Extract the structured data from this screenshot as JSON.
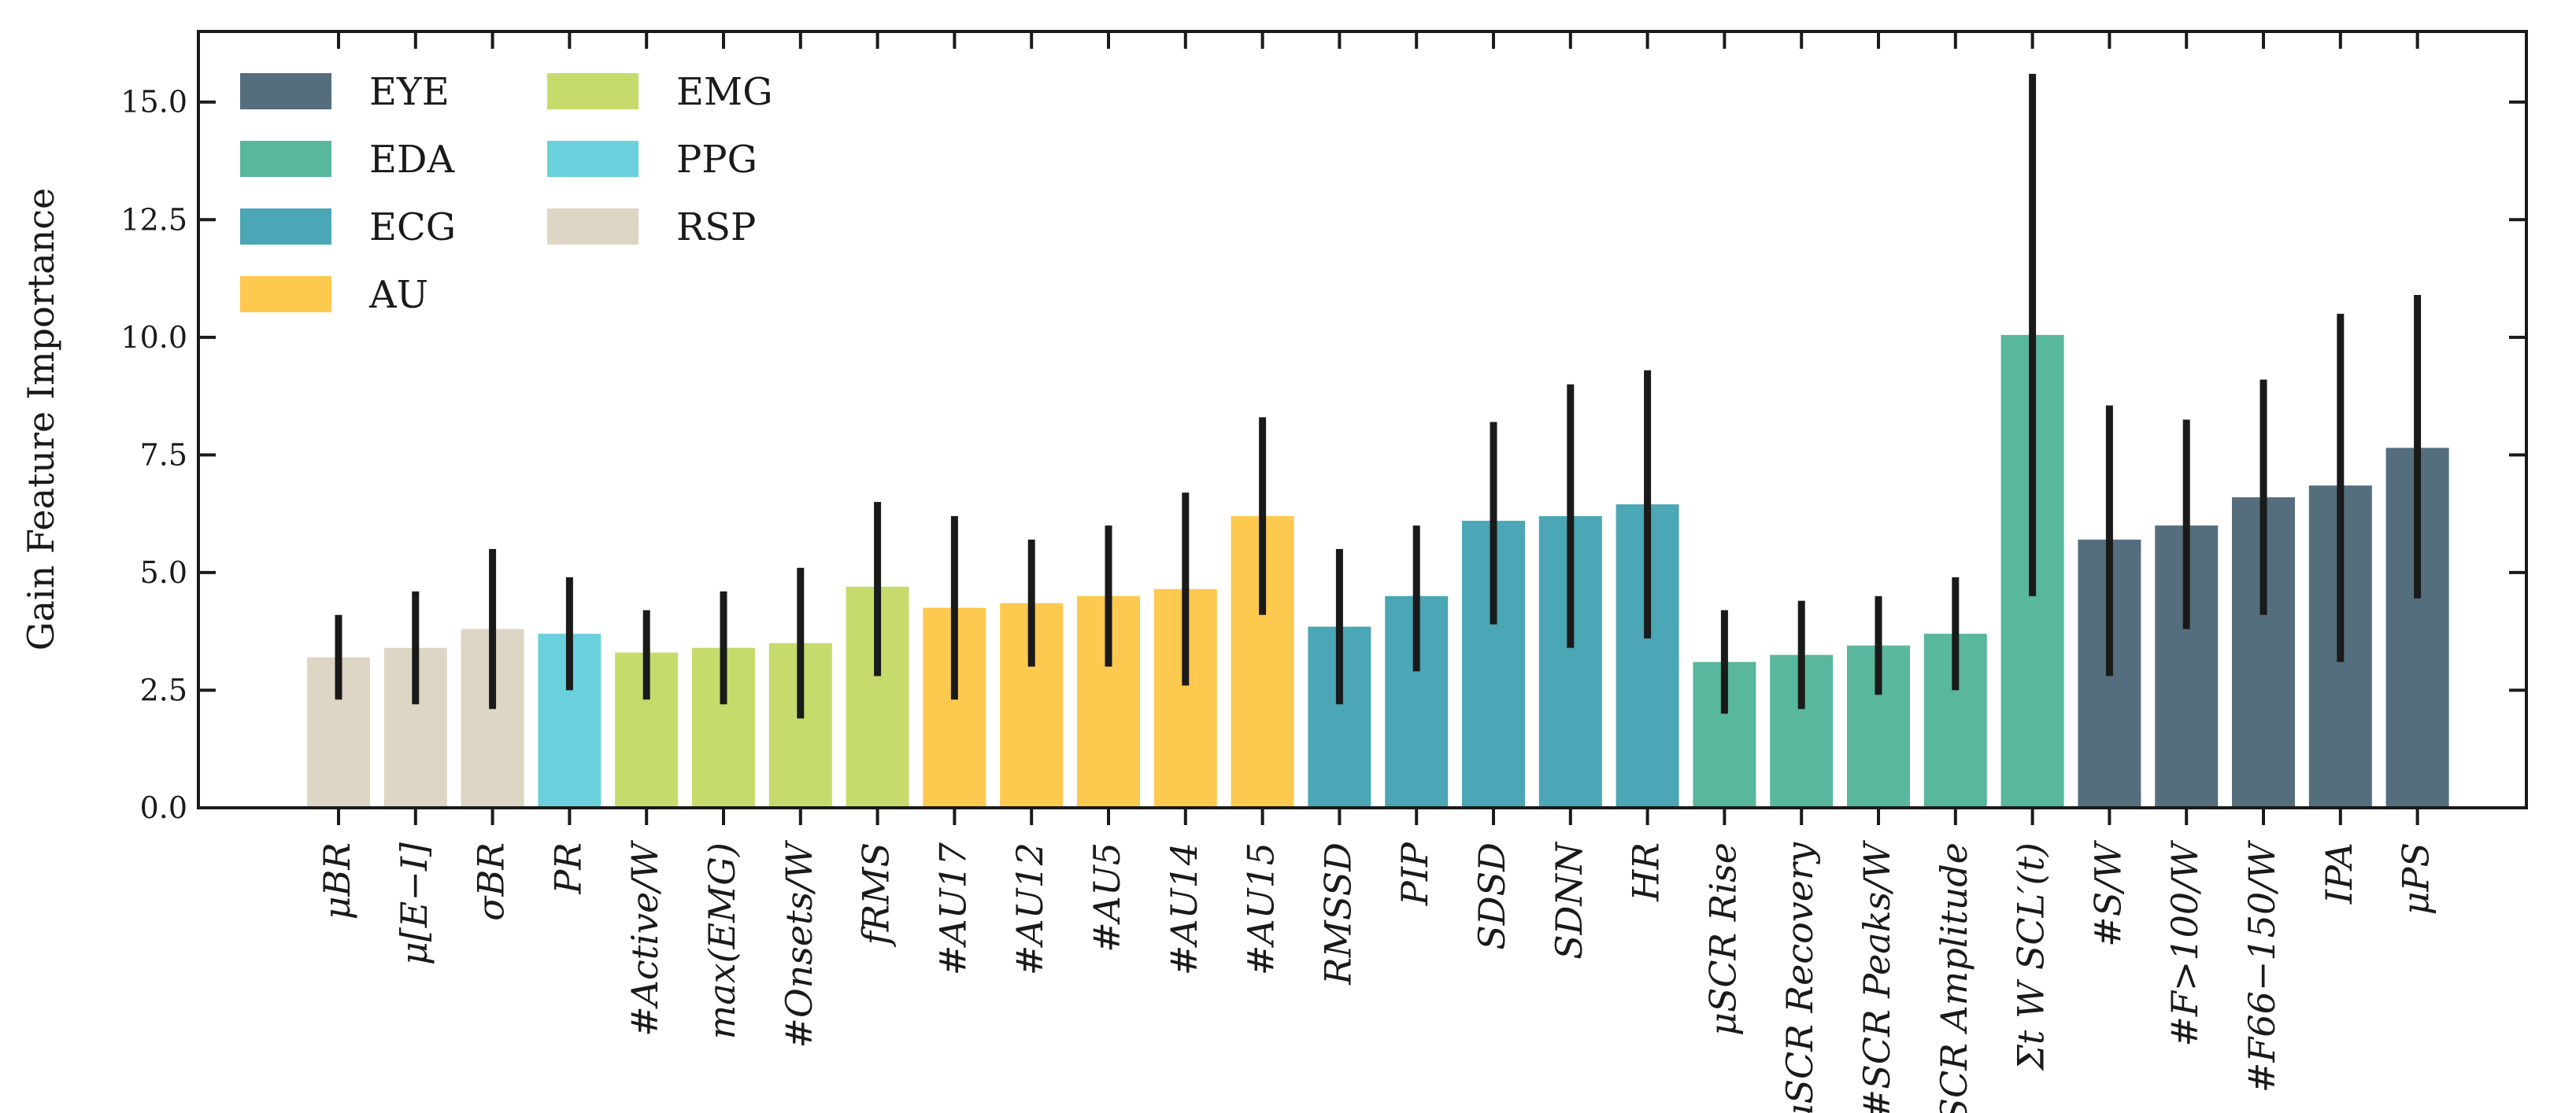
{
  "chart_data": {
    "type": "bar",
    "ylabel": "Gain Feature Importance",
    "xlabel": "",
    "ylim": [
      0,
      16.5
    ],
    "yticks": [
      "0.0",
      "2.5",
      "5.0",
      "7.5",
      "10.0",
      "12.5",
      "15.0"
    ],
    "legend": {
      "placement": "top-left",
      "entries": [
        "EYE",
        "EDA",
        "ECG",
        "AU",
        "EMG",
        "PPG",
        "RSP"
      ]
    },
    "group_colors": {
      "EYE": "#546e7d",
      "EDA": "#59b79e",
      "ECG": "#4ba6b5",
      "AU": "#fdc94f",
      "EMG": "#c5dc6c",
      "PPG": "#6ad1dc",
      "RSP": "#ded6c5"
    },
    "bars": [
      {
        "label": "μBR",
        "group": "RSP",
        "value": 3.2,
        "err_low": 2.3,
        "err_high": 4.1
      },
      {
        "label": "μ[E−I]",
        "group": "RSP",
        "value": 3.4,
        "err_low": 2.2,
        "err_high": 4.6
      },
      {
        "label": "σBR",
        "group": "RSP",
        "value": 3.8,
        "err_low": 2.1,
        "err_high": 5.5
      },
      {
        "label": "PR",
        "group": "PPG",
        "value": 3.7,
        "err_low": 2.5,
        "err_high": 4.9
      },
      {
        "label": "#Active/W",
        "group": "EMG",
        "value": 3.3,
        "err_low": 2.3,
        "err_high": 4.2
      },
      {
        "label": "max(EMG)",
        "group": "EMG",
        "value": 3.4,
        "err_low": 2.2,
        "err_high": 4.6
      },
      {
        "label": "#Onsets/W",
        "group": "EMG",
        "value": 3.5,
        "err_low": 1.9,
        "err_high": 5.1
      },
      {
        "label": "fRMS",
        "group": "EMG",
        "value": 4.7,
        "err_low": 2.8,
        "err_high": 6.5
      },
      {
        "label": "#AU17",
        "group": "AU",
        "value": 4.25,
        "err_low": 2.3,
        "err_high": 6.2
      },
      {
        "label": "#AU12",
        "group": "AU",
        "value": 4.35,
        "err_low": 3.0,
        "err_high": 5.7
      },
      {
        "label": "#AU5",
        "group": "AU",
        "value": 4.5,
        "err_low": 3.0,
        "err_high": 6.0
      },
      {
        "label": "#AU14",
        "group": "AU",
        "value": 4.65,
        "err_low": 2.6,
        "err_high": 6.7
      },
      {
        "label": "#AU15",
        "group": "AU",
        "value": 6.2,
        "err_low": 4.1,
        "err_high": 8.3
      },
      {
        "label": "RMSSD",
        "group": "ECG",
        "value": 3.85,
        "err_low": 2.2,
        "err_high": 5.5
      },
      {
        "label": "PIP",
        "group": "ECG",
        "value": 4.5,
        "err_low": 2.9,
        "err_high": 6.0
      },
      {
        "label": "SDSD",
        "group": "ECG",
        "value": 6.1,
        "err_low": 3.9,
        "err_high": 8.2
      },
      {
        "label": "SDNN",
        "group": "ECG",
        "value": 6.2,
        "err_low": 3.4,
        "err_high": 9.0
      },
      {
        "label": "HR",
        "group": "ECG",
        "value": 6.45,
        "err_low": 3.6,
        "err_high": 9.3
      },
      {
        "label": "μSCR Rise",
        "group": "EDA",
        "value": 3.1,
        "err_low": 2.0,
        "err_high": 4.2
      },
      {
        "label": "μSCR Recovery",
        "group": "EDA",
        "value": 3.25,
        "err_low": 2.1,
        "err_high": 4.4
      },
      {
        "label": "#SCR Peaks/W",
        "group": "EDA",
        "value": 3.45,
        "err_low": 2.4,
        "err_high": 4.5
      },
      {
        "label": "μSCR Amplitude",
        "group": "EDA",
        "value": 3.7,
        "err_low": 2.5,
        "err_high": 4.9
      },
      {
        "label": "Σt W SCL′(t)",
        "group": "EDA",
        "value": 10.05,
        "err_low": 4.5,
        "err_high": 15.6
      },
      {
        "label": "#S/W",
        "group": "EYE",
        "value": 5.7,
        "err_low": 2.8,
        "err_high": 8.55
      },
      {
        "label": "#F>100/W",
        "group": "EYE",
        "value": 6.0,
        "err_low": 3.8,
        "err_high": 8.25
      },
      {
        "label": "#F66−150/W",
        "group": "EYE",
        "value": 6.6,
        "err_low": 4.1,
        "err_high": 9.1
      },
      {
        "label": "IPA",
        "group": "EYE",
        "value": 6.85,
        "err_low": 3.1,
        "err_high": 10.5
      },
      {
        "label": "μPS",
        "group": "EYE",
        "value": 7.65,
        "err_low": 4.45,
        "err_high": 10.9
      }
    ]
  }
}
